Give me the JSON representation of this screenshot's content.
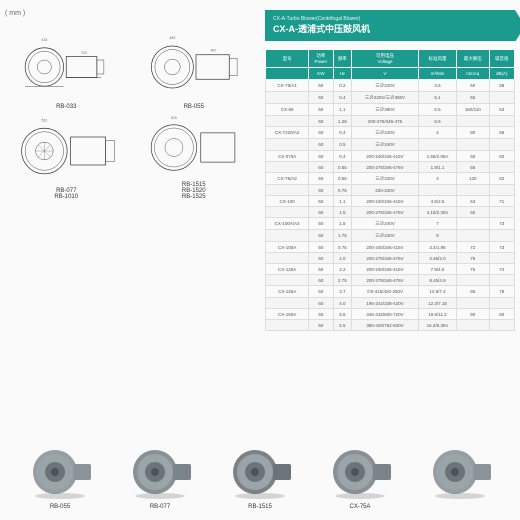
{
  "unit_label": "( mm )",
  "diagrams": [
    {
      "label": "RB-033"
    },
    {
      "label": "RB-055"
    },
    {
      "label": "RB-077\nRB-1010"
    },
    {
      "label": "RB-1515\nRB-1520\nRB-1525"
    }
  ],
  "header": {
    "subtitle": "CX-A-Turbo Blower(Centrifugal Blower)",
    "title": "CX-A-透浦式中压鼓风机"
  },
  "table": {
    "headers": [
      "型号",
      "功率",
      "频率",
      "可用电压",
      "标准风量",
      "最大静压",
      "噪音值"
    ],
    "subheaders": [
      "",
      "Power",
      "",
      "Voltage",
      "",
      "",
      ""
    ],
    "units": [
      "",
      "KW",
      "Hz",
      "V",
      "m³/Min",
      "mmAq",
      "dB(A)"
    ],
    "header_bg": "#1a9b8e",
    "header_color": "#ffffff",
    "row_alt_bg": "#f5f5f5",
    "border_color": "#dddddd",
    "rows": [
      [
        "CX-75/A1",
        "50",
        "0.2",
        "三∅220V",
        "3.5",
        "50",
        "58"
      ],
      [
        "",
        "60",
        "0.4",
        "三∅220V/三∅380V",
        "5.1",
        "55",
        ""
      ],
      [
        "CX-65",
        "50",
        "1.1",
        "三∅380V",
        "5.5",
        "160/110",
        "63"
      ],
      [
        "",
        "60",
        "1.28",
        "200-275/346-476",
        "6.6",
        "",
        ""
      ],
      [
        "CX-7220/A2",
        "50",
        "0.4",
        "三∅240V",
        "4",
        "80",
        "59"
      ],
      [
        "",
        "60",
        "0.5",
        "三∅240V",
        "",
        "",
        ""
      ],
      [
        "CX-075A",
        "50",
        "0.4",
        "200-240/346-415V",
        "1.65/2.95A",
        "50",
        "60"
      ],
      [
        "",
        "60",
        "0.55",
        "200-275/346-476V",
        "1.9/1.1",
        "55",
        ""
      ],
      [
        "CX-75/A2",
        "50",
        "0.55",
        "三∅220V",
        "4",
        "130",
        "62"
      ],
      [
        "",
        "60",
        "0.75",
        "220-240V",
        "",
        "",
        ""
      ],
      [
        "CX-100",
        "50",
        "1.1",
        "200-240/346-415V",
        "4.5/2.6",
        "53",
        "71"
      ],
      [
        "",
        "60",
        "1.5",
        "200-275/346-476V",
        "4.15/2.35V",
        "55",
        ""
      ],
      [
        "CX-100A/A2",
        "50",
        "1.5",
        "三∅240V",
        "7",
        "",
        "73"
      ],
      [
        "",
        "60",
        "1.75",
        "三∅240V",
        "8",
        "",
        ""
      ],
      [
        "CX-100A",
        "50",
        "0.75",
        "200-240/346-415V",
        "3.4/1.96",
        "72",
        "73"
      ],
      [
        "",
        "60",
        "1.0",
        "200-275/346-476V",
        "3.45/2.0",
        "75",
        ""
      ],
      [
        "CX-125A",
        "50",
        "2.2",
        "200-240/346-415V",
        "7.9/4.6",
        "75",
        "74"
      ],
      [
        "",
        "60",
        "2.75",
        "200-275/346-476V",
        "8.45/4.9",
        "",
        ""
      ],
      [
        "CX-125A",
        "50",
        "3.7",
        "∅0-415/420-250V",
        "12.9/7.4",
        "85",
        "78"
      ],
      [
        "",
        "60",
        "4.0",
        "195-242/338-420V",
        "12.3/7.15",
        "",
        ""
      ],
      [
        "CX-150A",
        "50",
        "5.5",
        "346-415/600-720V",
        "19.5/11.2",
        "90",
        "80"
      ],
      [
        "",
        "60",
        "5.5",
        "380-420/762-830V",
        "16.2/9.35V",
        "",
        ""
      ]
    ]
  },
  "products": [
    {
      "label": "RB-055",
      "color": "#8a9499"
    },
    {
      "label": "RB-077",
      "color": "#7a8489"
    },
    {
      "label": "RB-1515",
      "color": "#6a7479"
    },
    {
      "label": "CX-75A",
      "color": "#7a8489"
    },
    {
      "label": "",
      "color": "#8a9499"
    }
  ],
  "colors": {
    "accent": "#1a9b8e",
    "bg": "#ffffff",
    "page_bg": "#fafafa",
    "text": "#333333",
    "text_muted": "#666666"
  }
}
